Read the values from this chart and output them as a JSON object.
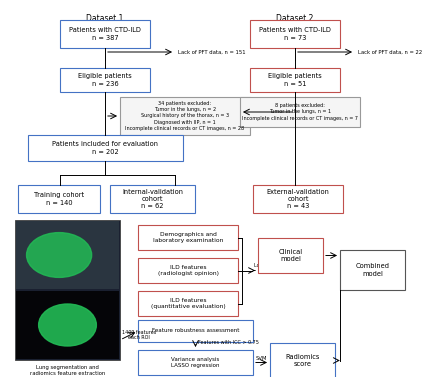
{
  "blue": "#4472C4",
  "red": "#C0504D",
  "gray_edge": "#999999",
  "dark_gray": "#555555",
  "white": "#FFFFFF",
  "light_gray_fill": "#F5F5F5",
  "dataset1_label": "Dataset 1",
  "dataset2_label": "Dataset 2",
  "d1_box1": "Patients with CTD-ILD\nn = 387",
  "d1_pft": "Lack of PFT data, n = 151",
  "d1_box2": "Eligible patients\nn = 236",
  "d1_excl": "34 patients excluded:\nTumor in the lungs, n = 2\nSurgical history of the thorax, n = 3\nDiagnosed with IIP, n = 1\nIncomplete clinical records or CT images, n = 28",
  "d1_box3": "Patients included for evaluation\nn = 202",
  "train_box": "Training cohort\nn = 140",
  "intval_box": "Internal-validation\ncohort\nn = 62",
  "d2_box1": "Patients with CTD-ILD\nn = 73",
  "d2_pft": "Lack of PFT data, n = 22",
  "d2_box2": "Eligible patients\nn = 51",
  "d2_excl": "8 patients excluded:\nTumor in the lungs, n = 1\nIncomplete clinical records or CT images, n = 7",
  "extval_box": "External-validation\ncohort\nn = 43",
  "demo_box": "Demographics and\nlaboratory examination",
  "ild_rad_box": "ILD features\n(radiologist opinion)",
  "ild_quant_box": "ILD features\n(quantitative evaluation)",
  "logistic_label": "Logistic regression analysis",
  "clinical_box": "Clinical\nmodel",
  "feat_robust_box": "Feature robustness assessment",
  "icc_label": "Features with ICC > 0.75",
  "variance_box": "Variance analysis\nLASSO regression",
  "svm_label": "SVM",
  "radiomics_box": "Radiomics\nscore",
  "combined_box": "Combined\nmodel",
  "feat_label": "1409 features\neach ROI",
  "img_label": "Lung segmentation and\nradiomics feature extraction"
}
